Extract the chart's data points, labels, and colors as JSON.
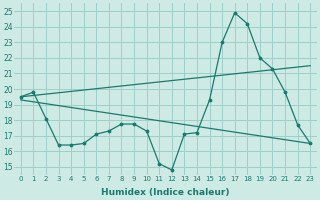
{
  "xlabel": "Humidex (Indice chaleur)",
  "xlim": [
    -0.5,
    23.5
  ],
  "ylim": [
    14.5,
    25.5
  ],
  "yticks": [
    15,
    16,
    17,
    18,
    19,
    20,
    21,
    22,
    23,
    24,
    25
  ],
  "xticks": [
    0,
    1,
    2,
    3,
    4,
    5,
    6,
    7,
    8,
    9,
    10,
    11,
    12,
    13,
    14,
    15,
    16,
    17,
    18,
    19,
    20,
    21,
    22,
    23
  ],
  "line_color": "#1a7a6e",
  "bg_color": "#ceeae5",
  "grid_color": "#9ecfc8",
  "hourly_x": [
    0,
    1,
    2,
    3,
    4,
    5,
    6,
    7,
    8,
    9,
    10,
    11,
    12,
    13,
    14,
    15,
    16,
    17,
    18,
    19,
    20,
    21,
    22,
    23
  ],
  "hourly_y": [
    19.5,
    19.8,
    18.1,
    16.4,
    16.4,
    16.5,
    17.1,
    17.3,
    17.75,
    17.75,
    17.3,
    15.2,
    14.8,
    17.1,
    17.2,
    19.3,
    23.0,
    24.9,
    24.2,
    22.0,
    21.3,
    19.8,
    17.7,
    16.5
  ],
  "trend1_x": [
    0,
    23
  ],
  "trend1_y": [
    19.5,
    21.5
  ],
  "trend2_x": [
    0,
    23
  ],
  "trend2_y": [
    19.3,
    16.5
  ]
}
